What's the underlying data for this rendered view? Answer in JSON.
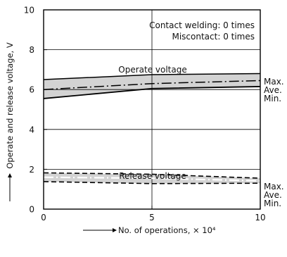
{
  "chart_data": {
    "type": "line",
    "xlabel": "No. of operations, × 10⁴",
    "ylabel": "Operate and release voltage, V",
    "x_ticks": [
      "0",
      "5",
      "10"
    ],
    "y_ticks": [
      "0",
      "2",
      "4",
      "6",
      "8",
      "10"
    ],
    "xlim": [
      0,
      10
    ],
    "ylim": [
      0,
      10
    ],
    "grid": true,
    "annotations": [
      "Contact welding: 0 times",
      "Miscontact: 0 times"
    ],
    "groups": [
      {
        "label": "Operate voltage",
        "x": [
          0,
          5,
          10
        ],
        "max": [
          6.5,
          6.75,
          6.8
        ],
        "ave": [
          6.0,
          6.3,
          6.45
        ],
        "min": [
          5.55,
          6.05,
          6.15
        ]
      },
      {
        "label": "Release voltage",
        "x": [
          0,
          5,
          10
        ],
        "max": [
          1.82,
          1.75,
          1.55
        ],
        "ave": [
          1.6,
          1.55,
          1.42
        ],
        "min": [
          1.38,
          1.28,
          1.3
        ]
      }
    ],
    "end_labels": [
      "Max.",
      "Ave.",
      "Min."
    ],
    "colors": {
      "band": "#d3d3d3",
      "line": "#000000",
      "ave_release": "#ffffff"
    }
  }
}
